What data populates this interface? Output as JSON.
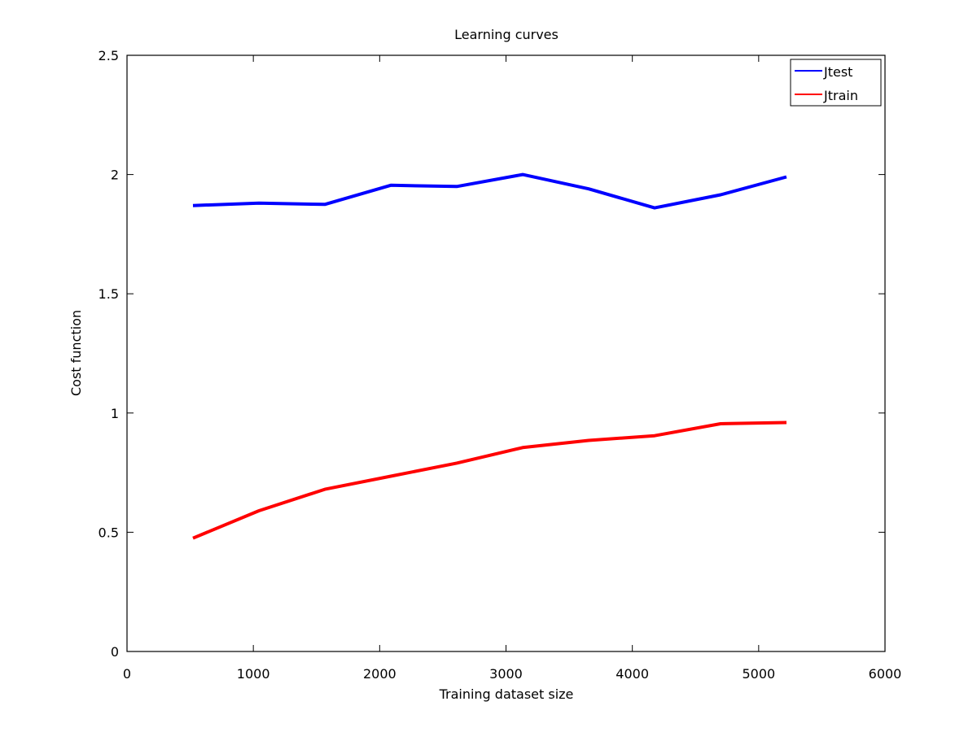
{
  "chart_data": {
    "type": "line",
    "title": "Learning curves",
    "xlabel": "Training dataset size",
    "ylabel": "Cost function",
    "xlim": [
      0,
      6000
    ],
    "ylim": [
      0,
      2.5
    ],
    "x_ticks": [
      0,
      1000,
      2000,
      3000,
      4000,
      5000,
      6000
    ],
    "y_ticks": [
      0,
      0.5,
      1,
      1.5,
      2,
      2.5
    ],
    "x_tick_labels": [
      "0",
      "1000",
      "2000",
      "3000",
      "4000",
      "5000",
      "6000"
    ],
    "y_tick_labels": [
      "0",
      "0.5",
      "1",
      "1.5",
      "2",
      "2.5"
    ],
    "grid": false,
    "legend_position": "top-right",
    "series": [
      {
        "name": "Jtest",
        "color": "#0000ff",
        "x": [
          522,
          1044,
          1566,
          2088,
          2610,
          3132,
          3654,
          4176,
          4698,
          5220
        ],
        "y": [
          1.87,
          1.88,
          1.875,
          1.955,
          1.95,
          2.0,
          1.94,
          1.86,
          1.915,
          1.99
        ]
      },
      {
        "name": "Jtrain",
        "color": "#ff0000",
        "x": [
          522,
          1044,
          1566,
          2088,
          2610,
          3132,
          3654,
          4176,
          4698,
          5220
        ],
        "y": [
          0.475,
          0.59,
          0.68,
          0.735,
          0.79,
          0.855,
          0.885,
          0.905,
          0.955,
          0.96
        ]
      }
    ]
  }
}
